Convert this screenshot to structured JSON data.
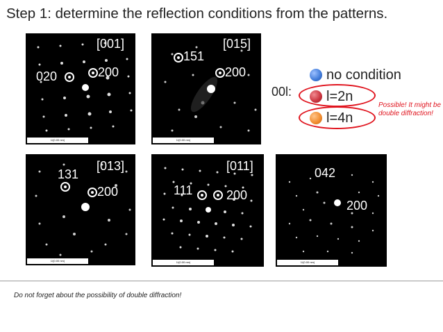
{
  "title": "Step 1: determine the reflection conditions from the patterns.",
  "panels": {
    "p001": {
      "zone": "[001]",
      "labels": [
        "020",
        "200"
      ],
      "scale": "1/(0.00 nm)"
    },
    "p015": {
      "zone": "[015]",
      "labels": [
        "151",
        "200"
      ],
      "scale": "1/(0.00 nm)"
    },
    "p013": {
      "zone": "[013]",
      "labels": [
        "131",
        "200"
      ],
      "scale": "1/(0.00 nm)"
    },
    "p011": {
      "zone": "[011]",
      "labels": [
        "111",
        "200"
      ],
      "scale": "1/(0.00 nm)"
    },
    "p5": {
      "labels": [
        "042",
        "200"
      ],
      "scale": "1/(0.00 nm)"
    }
  },
  "legend": {
    "label": "00l:",
    "items": [
      {
        "text": "no condition",
        "color": "#3f7ad8"
      },
      {
        "text": "l=2n",
        "color": "#c9313c"
      },
      {
        "text": "l=4n",
        "color": "#f08a2c"
      }
    ],
    "note": "Possible! It might be double diffraction!"
  },
  "footer": "Do  not forget about the possibility of double diffraction!"
}
